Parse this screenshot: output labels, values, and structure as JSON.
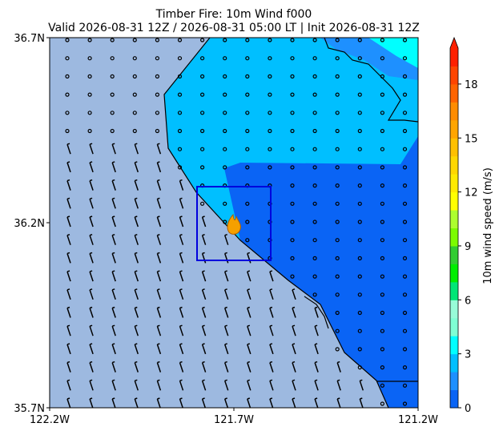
{
  "header": {
    "title": "Timber Fire: 10m Wind f000",
    "subtitle": "Valid 2026-08-31 12Z / 2026-08-31 05:00 LT | Init 2026-08-31 12Z"
  },
  "map": {
    "x_tick_labels": [
      "122.2W",
      "121.7W",
      "121.2W"
    ],
    "y_tick_labels": [
      "36.7N",
      "36.2N",
      "35.7N"
    ]
  },
  "colorbar": {
    "label": "10m wind speed (m/s)",
    "lim": [
      0,
      20
    ],
    "ticks": [
      0,
      3,
      6,
      9,
      12,
      15,
      18
    ],
    "colors": [
      "#0a64f5",
      "#1e90ff",
      "#00bfff",
      "#00ffff",
      "#7fffd4",
      "#98fbd8",
      "#00e676",
      "#00ee00",
      "#32cd32",
      "#7cfc00",
      "#adff2f",
      "#ffff00",
      "#ffea00",
      "#ffd700",
      "#ffc000",
      "#ffa500",
      "#ff8c00",
      "#ff6400",
      "#ff4500",
      "#ff2000"
    ]
  }
}
